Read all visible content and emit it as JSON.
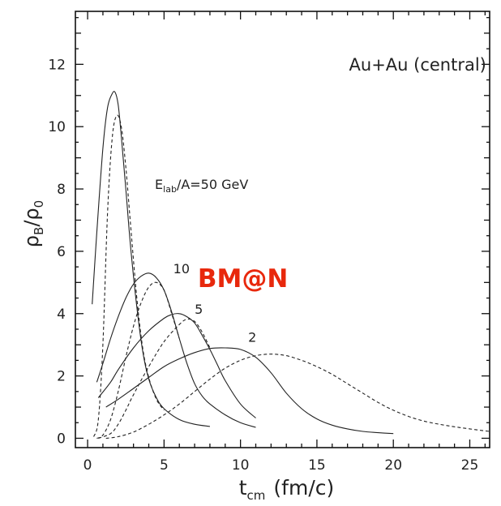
{
  "chart_data": {
    "type": "line",
    "title": "Au+Au (central)",
    "xlabel": {
      "main": "t",
      "sub": "cm",
      "unit": "(fm/c)"
    },
    "ylabel": {
      "main": "ρ",
      "sub1": "B",
      "slash": "/",
      "main2": "ρ",
      "sub2": "0"
    },
    "xlim": [
      -0.8,
      26.3
    ],
    "ylim": [
      -0.3,
      13.7
    ],
    "x_ticks": [
      0,
      5,
      10,
      15,
      20,
      25
    ],
    "y_ticks": [
      0,
      2,
      4,
      6,
      8,
      10,
      12
    ],
    "grid": false,
    "logo": {
      "text": "BM@N",
      "color": "#e8280c"
    },
    "energy_label": {
      "main": "E",
      "sub": "lab",
      "rest": "/A=50  GeV"
    },
    "series": [
      {
        "name": "50",
        "style": "solid",
        "x": [
          0.3,
          0.6,
          1.0,
          1.3,
          1.6,
          1.8,
          2.0,
          2.2,
          2.5,
          2.8,
          3.2,
          3.6,
          4.0,
          4.5,
          5.0,
          6.0,
          7.0,
          8.0
        ],
        "y": [
          4.3,
          6.6,
          9.3,
          10.6,
          11.05,
          11.1,
          10.7,
          9.7,
          8.0,
          6.2,
          4.3,
          2.8,
          1.9,
          1.3,
          0.95,
          0.6,
          0.45,
          0.38
        ]
      },
      {
        "name": "50",
        "style": "dashed",
        "x": [
          0.4,
          0.7,
          1.0,
          1.3,
          1.6,
          1.9,
          2.2,
          2.5,
          2.8,
          3.2,
          3.6,
          4.0,
          4.5,
          5.0
        ],
        "y": [
          0.05,
          0.6,
          3.0,
          7.2,
          9.6,
          10.35,
          10.0,
          8.7,
          6.9,
          4.6,
          2.9,
          1.95,
          1.25,
          0.9
        ]
      },
      {
        "name": "10",
        "style": "solid",
        "x": [
          0.6,
          1.0,
          1.5,
          2.0,
          2.5,
          3.0,
          3.5,
          4.0,
          4.5,
          5.0,
          5.5,
          6.0,
          6.5,
          7.0,
          7.5,
          8.0,
          9.0,
          10.0,
          11.0
        ],
        "y": [
          1.8,
          2.4,
          3.2,
          3.9,
          4.5,
          4.95,
          5.2,
          5.3,
          5.15,
          4.75,
          4.05,
          3.2,
          2.4,
          1.75,
          1.35,
          1.1,
          0.75,
          0.5,
          0.35
        ]
      },
      {
        "name": "10",
        "style": "dashed",
        "x": [
          0.6,
          1.0,
          1.5,
          2.0,
          2.5,
          3.0,
          3.5,
          4.0,
          4.5,
          5.0,
          5.5,
          6.0
        ],
        "y": [
          0.0,
          0.1,
          0.6,
          1.5,
          2.6,
          3.6,
          4.35,
          4.85,
          5.0,
          4.75,
          4.0,
          3.2
        ]
      },
      {
        "name": "5",
        "style": "solid",
        "x": [
          0.7,
          1.5,
          2.0,
          3.0,
          4.0,
          5.0,
          5.5,
          6.0,
          6.5,
          7.0,
          7.5,
          8.0,
          8.5,
          9.0,
          10.0,
          11.0
        ],
        "y": [
          1.3,
          1.8,
          2.2,
          2.9,
          3.45,
          3.85,
          3.97,
          4.0,
          3.9,
          3.7,
          3.3,
          2.85,
          2.35,
          1.85,
          1.1,
          0.65
        ]
      },
      {
        "name": "5",
        "style": "dashed",
        "x": [
          0.7,
          1.5,
          2.0,
          2.5,
          3.0,
          4.0,
          5.0,
          6.0,
          6.5,
          7.0,
          7.5,
          8.0
        ],
        "y": [
          0.0,
          0.15,
          0.45,
          0.9,
          1.4,
          2.3,
          3.1,
          3.65,
          3.82,
          3.75,
          3.4,
          2.9
        ]
      },
      {
        "name": "2",
        "style": "solid",
        "x": [
          1.2,
          2.0,
          3.0,
          4.0,
          5.0,
          6.0,
          7.0,
          8.0,
          9.0,
          10.0,
          11.0,
          12.0,
          13.0,
          14.0,
          15.0,
          16.0,
          17.0,
          18.0,
          19.0,
          20.0
        ],
        "y": [
          1.0,
          1.25,
          1.6,
          1.95,
          2.3,
          2.55,
          2.75,
          2.88,
          2.9,
          2.85,
          2.6,
          2.1,
          1.45,
          0.95,
          0.62,
          0.42,
          0.3,
          0.22,
          0.18,
          0.15
        ]
      },
      {
        "name": "2",
        "style": "dashed",
        "x": [
          1.2,
          2.0,
          3.0,
          4.0,
          5.0,
          6.0,
          7.0,
          8.0,
          9.0,
          10.0,
          11.0,
          12.0,
          13.0,
          14.0,
          15.0,
          16.0,
          17.0,
          18.0,
          19.0,
          20.0,
          21.0,
          22.0,
          23.0,
          24.0,
          25.0,
          26.3
        ],
        "y": [
          0.0,
          0.05,
          0.2,
          0.45,
          0.75,
          1.1,
          1.5,
          1.9,
          2.25,
          2.5,
          2.65,
          2.7,
          2.65,
          2.5,
          2.3,
          2.05,
          1.75,
          1.45,
          1.15,
          0.9,
          0.7,
          0.55,
          0.45,
          0.37,
          0.3,
          0.22
        ]
      }
    ],
    "curve_labels": [
      {
        "text": "10",
        "x": 5.6,
        "y": 5.3
      },
      {
        "text": "5",
        "x": 7.0,
        "y": 4.0
      },
      {
        "text": "2",
        "x": 10.5,
        "y": 3.1
      }
    ],
    "annotation_positions": {
      "title": {
        "x": 17.1,
        "y": 11.8
      },
      "energy_label": {
        "x": 4.4,
        "y": 8.0
      },
      "logo": {
        "x": 7.2,
        "y": 4.85
      }
    }
  }
}
